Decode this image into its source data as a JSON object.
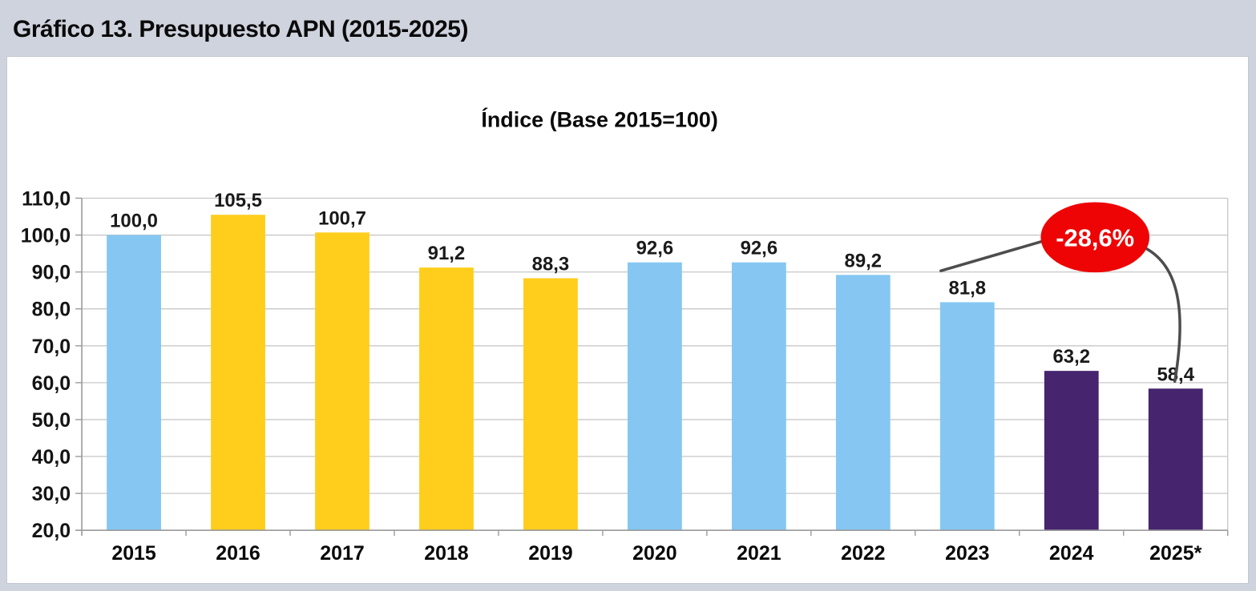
{
  "page": {
    "title": "Gráfico 13. Presupuesto APN (2015-2025)",
    "background_color": "#cfd3de",
    "panel_color": "#ffffff"
  },
  "chart_data": {
    "type": "bar",
    "title": "Índice (Base 2015=100)",
    "categories": [
      "2015",
      "2016",
      "2017",
      "2018",
      "2019",
      "2020",
      "2021",
      "2022",
      "2023",
      "2024",
      "2025*"
    ],
    "values": [
      100.0,
      105.5,
      100.7,
      91.2,
      88.3,
      92.6,
      92.6,
      89.2,
      81.8,
      63.2,
      58.4
    ],
    "value_labels": [
      "100,0",
      "105,5",
      "100,7",
      "91,2",
      "88,3",
      "92,6",
      "92,6",
      "89,2",
      "81,8",
      "63,2",
      "58,4"
    ],
    "bar_colors": [
      "#85c7f2",
      "#ffcd1c",
      "#ffcd1c",
      "#ffcd1c",
      "#ffcd1c",
      "#85c7f2",
      "#85c7f2",
      "#85c7f2",
      "#85c7f2",
      "#46246e",
      "#46246e"
    ],
    "xlabel": "",
    "ylabel": "",
    "ylim": [
      20,
      110
    ],
    "ytick_step": 10,
    "ytick_labels": [
      "110,0",
      "100,0",
      "90,0",
      "80,0",
      "70,0",
      "60,0",
      "50,0",
      "40,0",
      "30,0",
      "20,0"
    ],
    "grid": true,
    "legend": false,
    "annotation": {
      "label": "-28,6%",
      "shape": "ellipse",
      "fill_color": "#ee0404",
      "text_color": "#ffffff",
      "connector_color": "#4d4d4d",
      "from_category": "2023",
      "to_category": "2025*"
    },
    "palette": {
      "blue": "#85c7f2",
      "yellow": "#ffcd1c",
      "purple": "#46246e",
      "red": "#ee0404",
      "gridline": "#c8c8c8",
      "axis": "#9a9a9a",
      "label_text": "#1a1a1a"
    }
  }
}
